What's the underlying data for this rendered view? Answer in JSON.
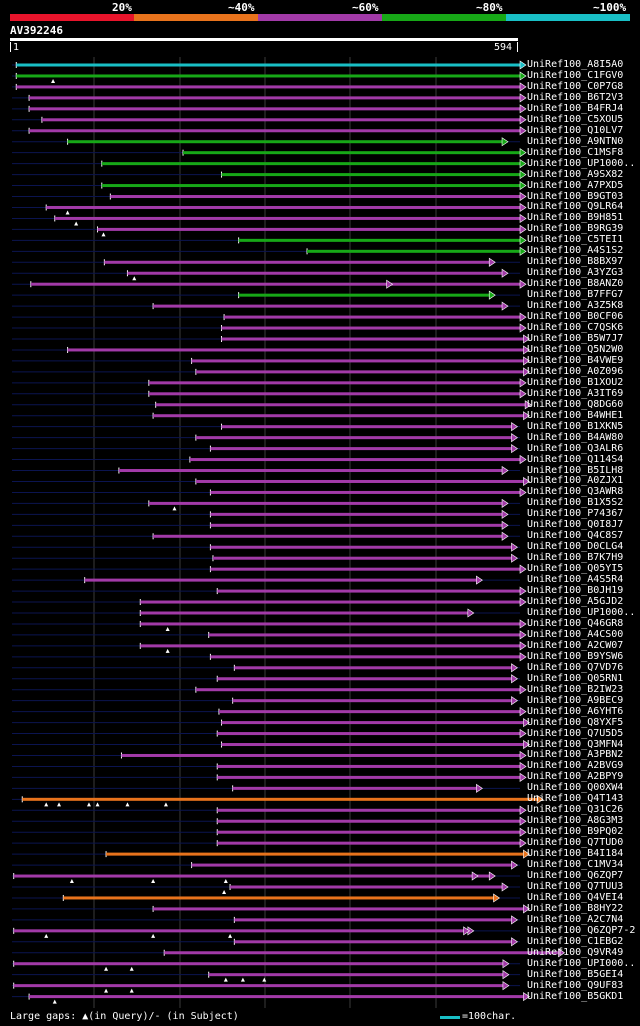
{
  "legend": {
    "labels": [
      "20%",
      "~40%",
      "~60%",
      "~80%",
      "~100%"
    ],
    "colors": [
      "#e8142b",
      "#e8731c",
      "#a23aa8",
      "#17a817",
      "#19bfc6"
    ]
  },
  "query": {
    "title": "AV392246",
    "start": "1",
    "end": "594",
    "length": 594
  },
  "hits": [
    {
      "name": "UniRef100_A8I5A0",
      "c": 4,
      "s": 5,
      "e": 594,
      "tri": []
    },
    {
      "name": "UniRef100_C1FGV0",
      "c": 3,
      "s": 5,
      "e": 594,
      "tri": [
        48
      ]
    },
    {
      "name": "UniRef100_C0P7G8",
      "c": 2,
      "s": 5,
      "e": 594,
      "tri": []
    },
    {
      "name": "UniRef100_B6T2V3",
      "c": 2,
      "s": 20,
      "e": 594,
      "tri": []
    },
    {
      "name": "UniRef100_B4FRJ4",
      "c": 2,
      "s": 20,
      "e": 594,
      "tri": []
    },
    {
      "name": "UniRef100_C5XOU5",
      "c": 2,
      "s": 35,
      "e": 594,
      "tri": []
    },
    {
      "name": "UniRef100_Q10LV7",
      "c": 2,
      "s": 20,
      "e": 594,
      "tri": []
    },
    {
      "name": "UniRef100_A9NTN0",
      "c": 3,
      "s": 65,
      "e": 573,
      "tri": []
    },
    {
      "name": "UniRef100_C1MSF8",
      "c": 3,
      "s": 200,
      "e": 594,
      "tri": []
    },
    {
      "name": "UniRef100_UP1000..",
      "c": 3,
      "s": 105,
      "e": 594,
      "tri": []
    },
    {
      "name": "UniRef100_A9SX82",
      "c": 3,
      "s": 245,
      "e": 594,
      "tri": []
    },
    {
      "name": "UniRef100_A7PXD5",
      "c": 3,
      "s": 105,
      "e": 594,
      "tri": []
    },
    {
      "name": "UniRef100_B9GT03",
      "c": 2,
      "s": 115,
      "e": 594,
      "tri": []
    },
    {
      "name": "UniRef100_Q9LR64",
      "c": 2,
      "s": 40,
      "e": 594,
      "tri": [
        65
      ]
    },
    {
      "name": "UniRef100_B9H851",
      "c": 2,
      "s": 50,
      "e": 594,
      "tri": [
        75
      ]
    },
    {
      "name": "UniRef100_B9RG39",
      "c": 2,
      "s": 100,
      "e": 594,
      "tri": [
        107
      ]
    },
    {
      "name": "UniRef100_C5TEI1",
      "c": 3,
      "s": 265,
      "e": 594,
      "tri": []
    },
    {
      "name": "UniRef100_A4S1S2",
      "c": 3,
      "s": 345,
      "e": 594,
      "tri": []
    },
    {
      "name": "UniRef100_B8BX97",
      "c": 2,
      "s": 108,
      "e": 558,
      "tri": []
    },
    {
      "name": "UniRef100_A3YZG3",
      "c": 2,
      "s": 135,
      "e": 573,
      "tri": [
        143
      ]
    },
    {
      "name": "UniRef100_B8ANZ0",
      "c": 2,
      "s": 22,
      "e": 594,
      "tri": [],
      "extra": [
        438
      ]
    },
    {
      "name": "UniRef100_B7FFG7",
      "c": 3,
      "s": 265,
      "e": 558,
      "tri": []
    },
    {
      "name": "UniRef100_A3Z5K8",
      "c": 2,
      "s": 165,
      "e": 573,
      "tri": []
    },
    {
      "name": "UniRef100_B0CF06",
      "c": 2,
      "s": 248,
      "e": 594,
      "tri": []
    },
    {
      "name": "UniRef100_C7QSK6",
      "c": 2,
      "s": 245,
      "e": 594,
      "tri": []
    },
    {
      "name": "UniRef100_B5W7J7",
      "c": 2,
      "s": 245,
      "e": 598,
      "tri": []
    },
    {
      "name": "UniRef100_Q5N2W0",
      "c": 2,
      "s": 65,
      "e": 598,
      "tri": []
    },
    {
      "name": "UniRef100_B4VWE9",
      "c": 2,
      "s": 210,
      "e": 598,
      "tri": []
    },
    {
      "name": "UniRef100_A0Z096",
      "c": 2,
      "s": 215,
      "e": 598,
      "tri": []
    },
    {
      "name": "UniRef100_B1XOU2",
      "c": 2,
      "s": 160,
      "e": 594,
      "tri": []
    },
    {
      "name": "UniRef100_A3IT69",
      "c": 2,
      "s": 160,
      "e": 594,
      "tri": []
    },
    {
      "name": "UniRef100_Q8DG60",
      "c": 2,
      "s": 168,
      "e": 600,
      "tri": []
    },
    {
      "name": "UniRef100_B4WHE1",
      "c": 2,
      "s": 165,
      "e": 598,
      "tri": []
    },
    {
      "name": "UniRef100_B1XKN5",
      "c": 2,
      "s": 245,
      "e": 584,
      "tri": []
    },
    {
      "name": "UniRef100_B4AW80",
      "c": 2,
      "s": 215,
      "e": 584,
      "tri": []
    },
    {
      "name": "UniRef100_Q3ALR6",
      "c": 2,
      "s": 232,
      "e": 584,
      "tri": []
    },
    {
      "name": "UniRef100_Q114S4",
      "c": 2,
      "s": 208,
      "e": 594,
      "tri": []
    },
    {
      "name": "UniRef100_B5ILH8",
      "c": 2,
      "s": 125,
      "e": 573,
      "tri": []
    },
    {
      "name": "UniRef100_A0ZJX1",
      "c": 2,
      "s": 215,
      "e": 598,
      "tri": []
    },
    {
      "name": "UniRef100_Q3AWR8",
      "c": 2,
      "s": 232,
      "e": 594,
      "tri": []
    },
    {
      "name": "UniRef100_B1X5S2",
      "c": 2,
      "s": 160,
      "e": 573,
      "tri": [
        190
      ]
    },
    {
      "name": "UniRef100_P74367",
      "c": 2,
      "s": 232,
      "e": 573,
      "tri": []
    },
    {
      "name": "UniRef100_Q0I8J7",
      "c": 2,
      "s": 232,
      "e": 573,
      "tri": []
    },
    {
      "name": "UniRef100_Q4C8S7",
      "c": 2,
      "s": 165,
      "e": 573,
      "tri": []
    },
    {
      "name": "UniRef100_D0CLG4",
      "c": 2,
      "s": 232,
      "e": 584,
      "tri": []
    },
    {
      "name": "UniRef100_B7K7H9",
      "c": 2,
      "s": 235,
      "e": 584,
      "tri": []
    },
    {
      "name": "UniRef100_Q05YI5",
      "c": 2,
      "s": 232,
      "e": 594,
      "tri": []
    },
    {
      "name": "UniRef100_A4S5R4",
      "c": 2,
      "s": 85,
      "e": 543,
      "tri": []
    },
    {
      "name": "UniRef100_B0JH19",
      "c": 2,
      "s": 240,
      "e": 594,
      "tri": []
    },
    {
      "name": "UniRef100_A5GJD2",
      "c": 2,
      "s": 150,
      "e": 594,
      "tri": []
    },
    {
      "name": "UniRef100_UP1000..",
      "c": 2,
      "s": 150,
      "e": 533,
      "tri": []
    },
    {
      "name": "UniRef100_Q46GR8",
      "c": 2,
      "s": 150,
      "e": 594,
      "tri": [
        182
      ]
    },
    {
      "name": "UniRef100_A4CS00",
      "c": 2,
      "s": 230,
      "e": 594,
      "tri": []
    },
    {
      "name": "UniRef100_A2CW07",
      "c": 2,
      "s": 150,
      "e": 594,
      "tri": [
        182
      ]
    },
    {
      "name": "UniRef100_B9YSW6",
      "c": 2,
      "s": 232,
      "e": 594,
      "tri": []
    },
    {
      "name": "UniRef100_Q7VD76",
      "c": 2,
      "s": 260,
      "e": 584,
      "tri": []
    },
    {
      "name": "UniRef100_Q05RN1",
      "c": 2,
      "s": 240,
      "e": 584,
      "tri": []
    },
    {
      "name": "UniRef100_B2IW23",
      "c": 2,
      "s": 215,
      "e": 594,
      "tri": []
    },
    {
      "name": "UniRef100_A9BEC9",
      "c": 2,
      "s": 258,
      "e": 584,
      "tri": []
    },
    {
      "name": "UniRef100_A6YHT6",
      "c": 2,
      "s": 242,
      "e": 594,
      "tri": []
    },
    {
      "name": "UniRef100_Q8YXF5",
      "c": 2,
      "s": 245,
      "e": 598,
      "tri": []
    },
    {
      "name": "UniRef100_Q7U5D5",
      "c": 2,
      "s": 240,
      "e": 594,
      "tri": []
    },
    {
      "name": "UniRef100_Q3MFN4",
      "c": 2,
      "s": 245,
      "e": 598,
      "tri": []
    },
    {
      "name": "UniRef100_A3PBN2",
      "c": 2,
      "s": 128,
      "e": 594,
      "tri": []
    },
    {
      "name": "UniRef100_A2BVG9",
      "c": 2,
      "s": 240,
      "e": 594,
      "tri": []
    },
    {
      "name": "UniRef100_A2BPY9",
      "c": 2,
      "s": 240,
      "e": 594,
      "tri": []
    },
    {
      "name": "UniRef100_Q00XW4",
      "c": 2,
      "s": 258,
      "e": 543,
      "tri": []
    },
    {
      "name": "UniRef100_Q4T143",
      "c": 1,
      "s": 12,
      "e": 614,
      "tri": [
        40,
        55,
        90,
        100,
        135,
        180
      ]
    },
    {
      "name": "UniRef100_Q31C26",
      "c": 2,
      "s": 240,
      "e": 594,
      "tri": []
    },
    {
      "name": "UniRef100_A8G3M3",
      "c": 2,
      "s": 240,
      "e": 594,
      "tri": []
    },
    {
      "name": "UniRef100_B9PQ02",
      "c": 2,
      "s": 240,
      "e": 594,
      "tri": []
    },
    {
      "name": "UniRef100_Q7TUD0",
      "c": 2,
      "s": 240,
      "e": 594,
      "tri": []
    },
    {
      "name": "UniRef100_B4I184",
      "c": 1,
      "s": 110,
      "e": 598,
      "tri": []
    },
    {
      "name": "UniRef100_C1MV34",
      "c": 2,
      "s": 210,
      "e": 584,
      "tri": []
    },
    {
      "name": "UniRef100_Q6ZQP7",
      "c": 2,
      "s": 2,
      "e": 558,
      "tri": [
        70,
        165,
        250
      ],
      "extra": [
        538
      ]
    },
    {
      "name": "UniRef100_Q7TUU3",
      "c": 2,
      "s": 255,
      "e": 573,
      "tri": [
        248
      ]
    },
    {
      "name": "UniRef100_Q4VEI4",
      "c": 1,
      "s": 60,
      "e": 563,
      "tri": []
    },
    {
      "name": "UniRef100_B8HY22",
      "c": 2,
      "s": 165,
      "e": 598,
      "tri": []
    },
    {
      "name": "UniRef100_A2C7N4",
      "c": 2,
      "s": 260,
      "e": 584,
      "tri": []
    },
    {
      "name": "UniRef100_Q6ZQP7-2",
      "c": 2,
      "s": 2,
      "e": 533,
      "tri": [
        40,
        165,
        255
      ],
      "extra": [
        528
      ]
    },
    {
      "name": "UniRef100_C1EBG2",
      "c": 2,
      "s": 260,
      "e": 584,
      "tri": []
    },
    {
      "name": "UniRef100_Q9VR49",
      "c": 2,
      "s": 178,
      "e": 639,
      "tri": []
    },
    {
      "name": "UniRef100_UPI000..",
      "c": 2,
      "s": 2,
      "e": 574,
      "tri": [
        110,
        140
      ]
    },
    {
      "name": "UniRef100_B5GEI4",
      "c": 2,
      "s": 230,
      "e": 574,
      "tri": [
        250,
        270,
        295
      ]
    },
    {
      "name": "UniRef100_Q9UF83",
      "c": 2,
      "s": 2,
      "e": 574,
      "tri": [
        110,
        140
      ]
    },
    {
      "name": "UniRef100_B5GKD1",
      "c": 2,
      "s": 20,
      "e": 598,
      "tri": [
        50
      ]
    }
  ],
  "footer": {
    "gaps_text": "Large gaps: ▲(in Query)/- (in Subject)",
    "scale_text": "=100char."
  }
}
